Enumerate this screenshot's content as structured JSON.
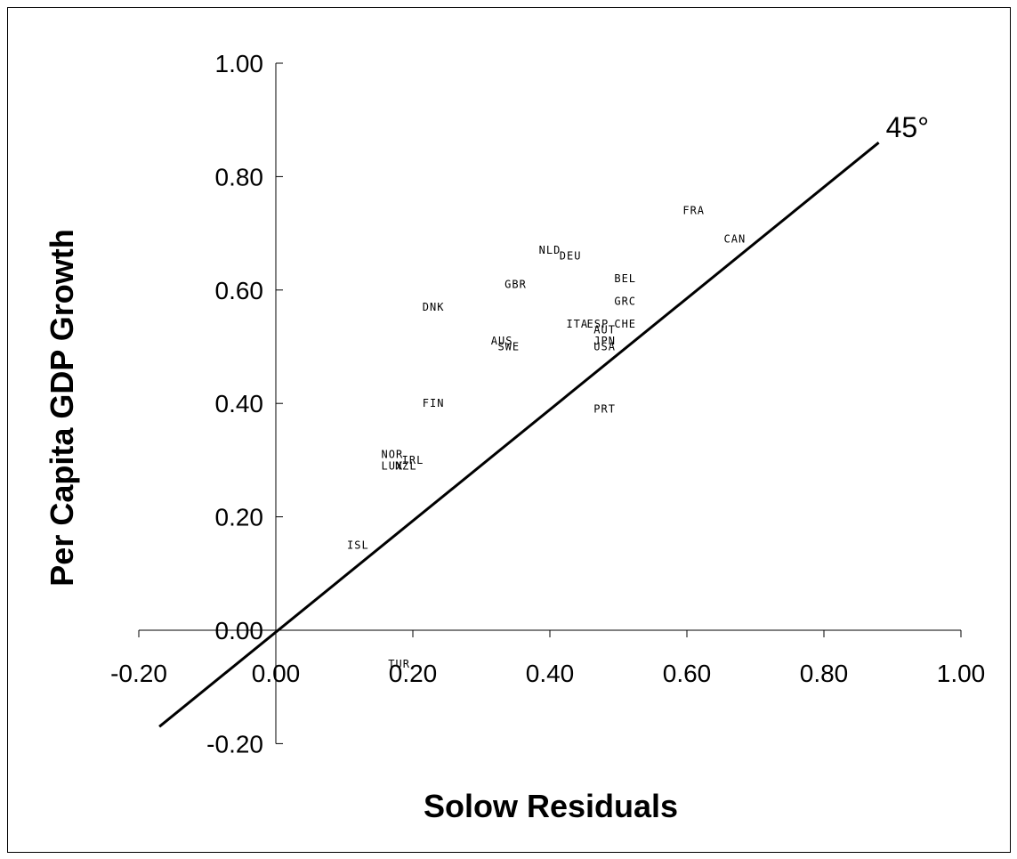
{
  "chart_data": {
    "type": "scatter",
    "xlabel": "Solow Residuals",
    "ylabel": "Per Capita GDP Growth",
    "xlim": [
      -0.2,
      1.0
    ],
    "ylim": [
      -0.2,
      1.0
    ],
    "x_ticks": [
      "-0.20",
      "0.00",
      "0.20",
      "0.40",
      "0.60",
      "0.80",
      "1.00"
    ],
    "y_ticks": [
      "-0.20",
      "0.00",
      "0.20",
      "0.40",
      "0.60",
      "0.80",
      "1.00"
    ],
    "reference_line": {
      "label": "45°",
      "x": [
        -0.17,
        0.88
      ],
      "y": [
        -0.17,
        0.86
      ]
    },
    "points": [
      {
        "label": "FRA",
        "x": 0.61,
        "y": 0.74
      },
      {
        "label": "CAN",
        "x": 0.67,
        "y": 0.69
      },
      {
        "label": "NLD",
        "x": 0.4,
        "y": 0.67
      },
      {
        "label": "DEU",
        "x": 0.43,
        "y": 0.66
      },
      {
        "label": "BEL",
        "x": 0.51,
        "y": 0.62
      },
      {
        "label": "GBR",
        "x": 0.35,
        "y": 0.61
      },
      {
        "label": "GRC",
        "x": 0.51,
        "y": 0.58
      },
      {
        "label": "DNK",
        "x": 0.23,
        "y": 0.57
      },
      {
        "label": "ITA",
        "x": 0.44,
        "y": 0.54
      },
      {
        "label": "ESP",
        "x": 0.47,
        "y": 0.54
      },
      {
        "label": "CHE",
        "x": 0.51,
        "y": 0.54
      },
      {
        "label": "AUT",
        "x": 0.48,
        "y": 0.53
      },
      {
        "label": "AUS",
        "x": 0.33,
        "y": 0.51
      },
      {
        "label": "SWE",
        "x": 0.34,
        "y": 0.5
      },
      {
        "label": "JPN",
        "x": 0.48,
        "y": 0.51
      },
      {
        "label": "USA",
        "x": 0.48,
        "y": 0.5
      },
      {
        "label": "FIN",
        "x": 0.23,
        "y": 0.4
      },
      {
        "label": "PRT",
        "x": 0.48,
        "y": 0.39
      },
      {
        "label": "NOR",
        "x": 0.17,
        "y": 0.31
      },
      {
        "label": "IRL",
        "x": 0.2,
        "y": 0.3
      },
      {
        "label": "LUX",
        "x": 0.17,
        "y": 0.29
      },
      {
        "label": "NZL",
        "x": 0.19,
        "y": 0.29
      },
      {
        "label": "ISL",
        "x": 0.12,
        "y": 0.15
      },
      {
        "label": "TUR",
        "x": 0.18,
        "y": -0.06
      }
    ]
  }
}
